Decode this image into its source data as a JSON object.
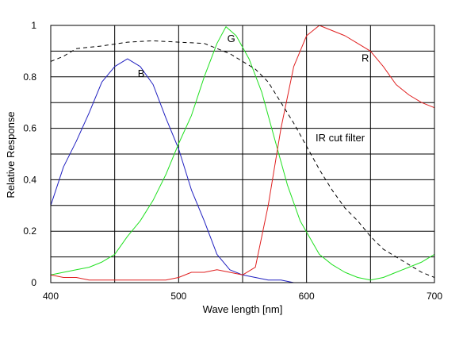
{
  "chart_data": {
    "type": "line",
    "title": "",
    "xlabel": "Wave length [nm]",
    "ylabel": "Relative Response",
    "xlim": [
      400,
      700
    ],
    "ylim": [
      0,
      1
    ],
    "x_ticks": [
      400,
      500,
      600,
      700
    ],
    "x_tick_labels": [
      "400",
      "500",
      "600",
      "700"
    ],
    "y_ticks": [
      0,
      0.2,
      0.4,
      0.6,
      0.8,
      1
    ],
    "y_tick_labels": [
      "0",
      "0.2",
      "0.4",
      "0.6",
      "0.8",
      "1"
    ],
    "grid": true,
    "grid_x_step": 50,
    "grid_y_step": 0.1,
    "legend": "none",
    "series": [
      {
        "name": "B",
        "color": "#2020c0",
        "dashed": false,
        "label_at": [
          468,
          0.8
        ],
        "points": [
          [
            400,
            0.3
          ],
          [
            410,
            0.45
          ],
          [
            420,
            0.55
          ],
          [
            430,
            0.66
          ],
          [
            440,
            0.78
          ],
          [
            450,
            0.84
          ],
          [
            460,
            0.87
          ],
          [
            470,
            0.84
          ],
          [
            480,
            0.77
          ],
          [
            490,
            0.64
          ],
          [
            500,
            0.52
          ],
          [
            510,
            0.36
          ],
          [
            520,
            0.24
          ],
          [
            530,
            0.11
          ],
          [
            540,
            0.05
          ],
          [
            550,
            0.03
          ],
          [
            560,
            0.02
          ],
          [
            570,
            0.01
          ],
          [
            580,
            0.01
          ],
          [
            590,
            0.0
          ]
        ]
      },
      {
        "name": "G",
        "color": "#20e020",
        "dashed": false,
        "label_at": [
          538,
          0.935
        ],
        "points": [
          [
            400,
            0.03
          ],
          [
            410,
            0.04
          ],
          [
            420,
            0.05
          ],
          [
            430,
            0.06
          ],
          [
            440,
            0.08
          ],
          [
            450,
            0.11
          ],
          [
            460,
            0.18
          ],
          [
            470,
            0.24
          ],
          [
            480,
            0.32
          ],
          [
            490,
            0.42
          ],
          [
            500,
            0.54
          ],
          [
            510,
            0.65
          ],
          [
            520,
            0.8
          ],
          [
            530,
            0.93
          ],
          [
            537,
            0.995
          ],
          [
            545,
            0.96
          ],
          [
            555,
            0.87
          ],
          [
            565,
            0.74
          ],
          [
            575,
            0.56
          ],
          [
            585,
            0.38
          ],
          [
            595,
            0.24
          ],
          [
            610,
            0.11
          ],
          [
            620,
            0.07
          ],
          [
            630,
            0.04
          ],
          [
            640,
            0.02
          ],
          [
            650,
            0.01
          ],
          [
            660,
            0.02
          ],
          [
            670,
            0.04
          ],
          [
            680,
            0.06
          ],
          [
            690,
            0.08
          ],
          [
            700,
            0.11
          ]
        ]
      },
      {
        "name": "R",
        "color": "#e02020",
        "dashed": false,
        "label_at": [
          643,
          0.86
        ],
        "points": [
          [
            400,
            0.03
          ],
          [
            410,
            0.02
          ],
          [
            420,
            0.02
          ],
          [
            430,
            0.01
          ],
          [
            450,
            0.01
          ],
          [
            470,
            0.01
          ],
          [
            490,
            0.01
          ],
          [
            500,
            0.02
          ],
          [
            510,
            0.04
          ],
          [
            520,
            0.04
          ],
          [
            530,
            0.05
          ],
          [
            540,
            0.04
          ],
          [
            550,
            0.03
          ],
          [
            560,
            0.06
          ],
          [
            570,
            0.3
          ],
          [
            580,
            0.6
          ],
          [
            590,
            0.84
          ],
          [
            600,
            0.96
          ],
          [
            610,
            1.0
          ],
          [
            620,
            0.98
          ],
          [
            630,
            0.96
          ],
          [
            640,
            0.93
          ],
          [
            650,
            0.9
          ],
          [
            660,
            0.84
          ],
          [
            670,
            0.77
          ],
          [
            680,
            0.73
          ],
          [
            690,
            0.7
          ],
          [
            700,
            0.68
          ]
        ]
      },
      {
        "name": "IR cut filter",
        "color": "#000000",
        "dashed": true,
        "label_at": [
          607,
          0.55
        ],
        "points": [
          [
            400,
            0.86
          ],
          [
            410,
            0.88
          ],
          [
            420,
            0.91
          ],
          [
            440,
            0.92
          ],
          [
            460,
            0.935
          ],
          [
            480,
            0.94
          ],
          [
            500,
            0.935
          ],
          [
            520,
            0.93
          ],
          [
            540,
            0.89
          ],
          [
            560,
            0.83
          ],
          [
            570,
            0.78
          ],
          [
            580,
            0.7
          ],
          [
            590,
            0.62
          ],
          [
            600,
            0.53
          ],
          [
            610,
            0.44
          ],
          [
            620,
            0.36
          ],
          [
            630,
            0.29
          ],
          [
            640,
            0.24
          ],
          [
            650,
            0.18
          ],
          [
            660,
            0.13
          ],
          [
            670,
            0.1
          ],
          [
            680,
            0.07
          ],
          [
            690,
            0.04
          ],
          [
            700,
            0.02
          ]
        ]
      }
    ]
  }
}
